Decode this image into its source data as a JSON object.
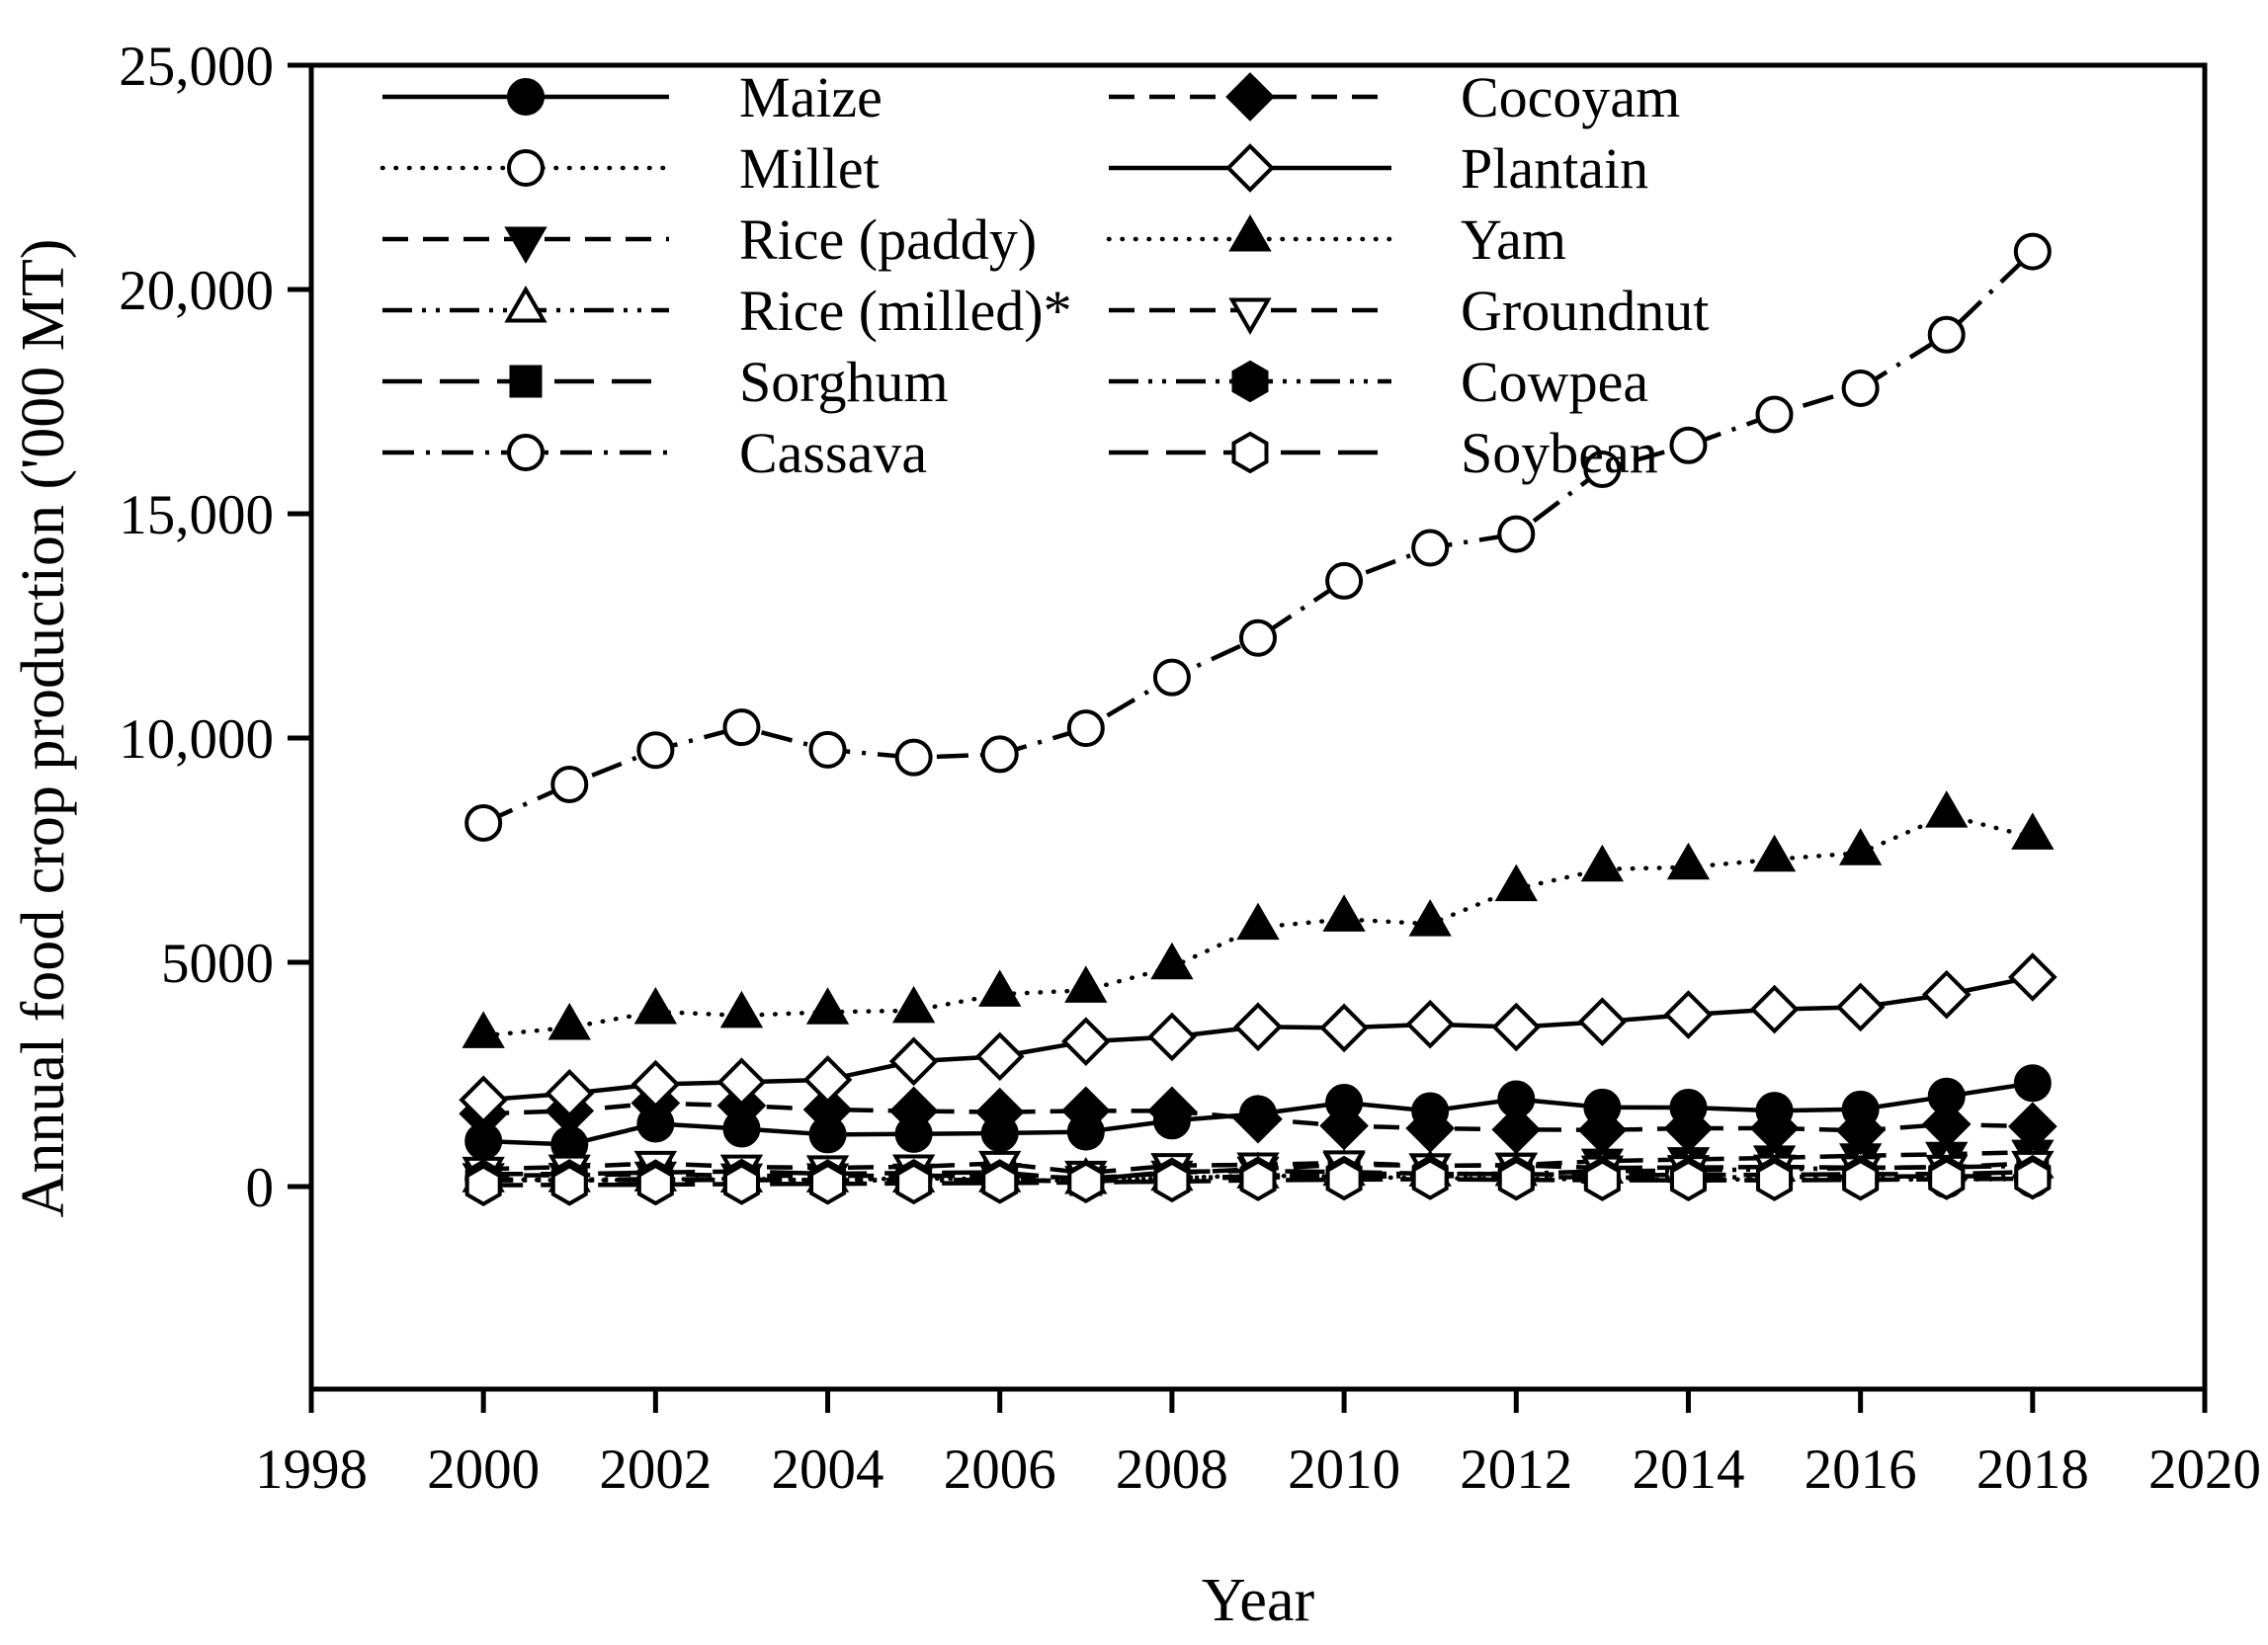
{
  "figure": {
    "background": "#ffffff",
    "foreground": "#000000"
  },
  "chart_data": {
    "type": "line",
    "title": "",
    "xlabel": "Year",
    "ylabel": "Annual food crop production ('000 MT)",
    "grid": false,
    "legend_position": "top-left, two columns inside plot",
    "xlim": [
      1998,
      2020
    ],
    "ylim": [
      -4500,
      25000
    ],
    "x_tick_labels": [
      "1998",
      "2000",
      "2002",
      "2004",
      "2006",
      "2008",
      "2010",
      "2012",
      "2014",
      "2016",
      "2018",
      "2020"
    ],
    "x_tick_values": [
      1998,
      2000,
      2002,
      2004,
      2006,
      2008,
      2010,
      2012,
      2014,
      2016,
      2018,
      2020
    ],
    "y_tick_labels": [
      "0",
      "5000",
      "10,000",
      "15,000",
      "20,000",
      "25,000"
    ],
    "y_tick_values": [
      0,
      5000,
      10000,
      15000,
      20000,
      25000
    ],
    "x": [
      2000,
      2001,
      2002,
      2003,
      2004,
      2005,
      2006,
      2007,
      2008,
      2009,
      2010,
      2011,
      2012,
      2013,
      2014,
      2015,
      2016,
      2017,
      2018
    ],
    "series": [
      {
        "name": "Maize",
        "marker": "filled-circle",
        "linestyle": "solid",
        "values": [
          1013,
          938,
          1400,
          1289,
          1158,
          1171,
          1189,
          1220,
          1470,
          1620,
          1872,
          1684,
          1950,
          1764,
          1762,
          1692,
          1722,
          2011,
          2306
        ]
      },
      {
        "name": "Millet",
        "marker": "open-circle",
        "linestyle": "dotted",
        "values": [
          169,
          134,
          159,
          176,
          144,
          185,
          165,
          113,
          194,
          246,
          219,
          184,
          180,
          155,
          156,
          159,
          159,
          156,
          170
        ]
      },
      {
        "name": "Rice (paddy)",
        "marker": "filled-triangle-down",
        "linestyle": "dashed",
        "values": [
          249,
          253,
          280,
          239,
          242,
          237,
          250,
          185,
          302,
          391,
          492,
          464,
          481,
          570,
          604,
          641,
          688,
          722,
          769
        ]
      },
      {
        "name": "Rice (milled)*",
        "marker": "open-triangle-up",
        "linestyle": "dash-dot-dot",
        "values": [
          149,
          152,
          168,
          143,
          145,
          142,
          150,
          111,
          181,
          235,
          295,
          278,
          289,
          342,
          362,
          385,
          413,
          433,
          461
        ]
      },
      {
        "name": "Sorghum",
        "marker": "filled-square",
        "linestyle": "long-dash",
        "values": [
          280,
          280,
          316,
          338,
          287,
          305,
          315,
          155,
          331,
          351,
          324,
          287,
          280,
          257,
          259,
          263,
          278,
          281,
          326
        ]
      },
      {
        "name": "Cassava",
        "marker": "open-circle",
        "linestyle": "dash-dot",
        "values": [
          8107,
          8966,
          9731,
          10239,
          9739,
          9567,
          9638,
          10218,
          11351,
          12231,
          13504,
          14241,
          14547,
          15990,
          16524,
          17213,
          17798,
          18991,
          20846
        ]
      },
      {
        "name": "Cocoyam",
        "marker": "filled-diamond",
        "linestyle": "dashed",
        "values": [
          1625,
          1688,
          1860,
          1805,
          1716,
          1686,
          1660,
          1690,
          1688,
          1504,
          1355,
          1299,
          1270,
          1261,
          1299,
          1301,
          1250,
          1390,
          1340
        ]
      },
      {
        "name": "Plantain",
        "marker": "open-diamond",
        "linestyle": "solid",
        "values": [
          1932,
          2074,
          2279,
          2329,
          2381,
          2792,
          2900,
          3234,
          3338,
          3563,
          3538,
          3619,
          3556,
          3675,
          3832,
          3952,
          4000,
          4281,
          4670
        ]
      },
      {
        "name": "Yam",
        "marker": "filled-triangle-up",
        "linestyle": "dotted",
        "values": [
          3363,
          3547,
          3900,
          3813,
          3892,
          3923,
          4288,
          4376,
          4895,
          5778,
          5960,
          5855,
          6639,
          7075,
          7119,
          7296,
          7440,
          8278,
          7789
        ]
      },
      {
        "name": "Groundnut",
        "marker": "open-triangle-down",
        "linestyle": "dashed",
        "values": [
          389,
          439,
          520,
          439,
          420,
          440,
          520,
          301,
          470,
          485,
          531,
          465,
          475,
          417,
          426,
          438,
          420,
          432,
          521
        ]
      },
      {
        "name": "Cowpea",
        "marker": "filled-hexagon",
        "linestyle": "dash-dot-dot",
        "values": [
          141,
          144,
          140,
          154,
          142,
          148,
          144,
          123,
          180,
          205,
          219,
          237,
          224,
          200,
          203,
          210,
          225,
          230,
          236
        ]
      },
      {
        "name": "Soybean",
        "marker": "open-hexagon",
        "linestyle": "long-dash",
        "values": [
          30,
          38,
          45,
          55,
          62,
          70,
          80,
          95,
          113,
          141,
          155,
          166,
          152,
          141,
          138,
          142,
          150,
          166,
          176
        ]
      }
    ],
    "legend_columns": [
      [
        "Maize",
        "Millet",
        "Rice (paddy)",
        "Rice (milled)*",
        "Sorghum",
        "Cassava"
      ],
      [
        "Cocoyam",
        "Plantain",
        "Yam",
        "Groundnut",
        "Cowpea",
        "Soybean"
      ]
    ]
  }
}
